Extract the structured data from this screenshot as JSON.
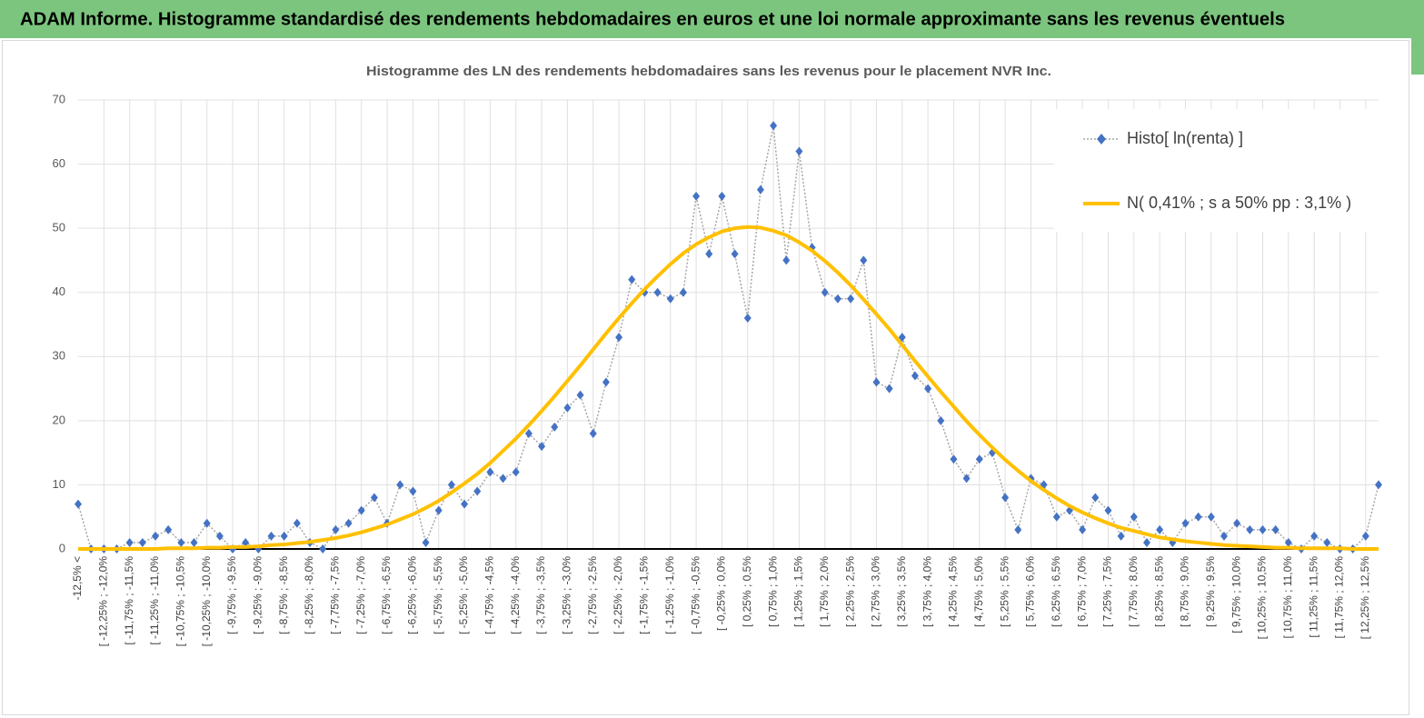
{
  "header": {
    "title": "ADAM Informe. Histogramme standardisé des rendements hebdomadaires en euros et une loi normale approximante sans les revenus éventuels"
  },
  "chart_data": {
    "type": "line",
    "title": "Histogramme des LN des rendements hebdomadaires sans les revenus pour le placement NVR Inc.",
    "categories": [
      "-12,5% <",
      null,
      "[ -12,25% ; -12,0%",
      null,
      "[ -11,75% ; -11,5%",
      null,
      "[ -11,25% ; -11,0%",
      null,
      "[ -10,75% ; -10,5%",
      null,
      "[ -10,25% ; -10,0%",
      null,
      "[ -9,75% ; -9,5%",
      null,
      "[ -9,25% ; -9,0%",
      null,
      "[ -8,75% ; -8,5%",
      null,
      "[ -8,25% ; -8,0%",
      null,
      "[ -7,75% ; -7,5%",
      null,
      "[ -7,25% ; -7,0%",
      null,
      "[ -6,75% ; -6,5%",
      null,
      "[ -6,25% ; -6,0%",
      null,
      "[ -5,75% ; -5,5%",
      null,
      "[ -5,25% ; -5,0%",
      null,
      "[ -4,75% ; -4,5%",
      null,
      "[ -4,25% ; -4,0%",
      null,
      "[ -3,75% ; -3,5%",
      null,
      "[ -3,25% ; -3,0%",
      null,
      "[ -2,75% ; -2,5%",
      null,
      "[ -2,25% ; -2,0%",
      null,
      "[ -1,75% ; -1,5%",
      null,
      "[ -1,25% ; -1,0%",
      null,
      "[ -0,75% ; -0,5%",
      null,
      "[ -0,25% ; 0,0%",
      null,
      "[ 0,25% ; 0,5%",
      null,
      "[ 0,75% ; 1,0%",
      null,
      "[ 1,25% ; 1,5%",
      null,
      "[ 1,75% ; 2,0%",
      null,
      "[ 2,25% ; 2,5%",
      null,
      "[ 2,75% ; 3,0%",
      null,
      "[ 3,25% ; 3,5%",
      null,
      "[ 3,75% ; 4,0%",
      null,
      "[ 4,25% ; 4,5%",
      null,
      "[ 4,75% ; 5,0%",
      null,
      "[ 5,25% ; 5,5%",
      null,
      "[ 5,75% ; 6,0%",
      null,
      "[ 6,25% ; 6,5%",
      null,
      "[ 6,75% ; 7,0%",
      null,
      "[ 7,25% ; 7,5%",
      null,
      "[ 7,75% ; 8,0%",
      null,
      "[ 8,25% ; 8,5%",
      null,
      "[ 8,75% ; 9,0%",
      null,
      "[ 9,25% ; 9,5%",
      null,
      "[ 9,75% ; 10,0%",
      null,
      "[ 10,25% ; 10,5%",
      null,
      "[ 10,75% ; 11,0%",
      null,
      "[ 11,25% ; 11,5%",
      null,
      "[ 11,75% ; 12,0%",
      null,
      "[ 12,25% ; 12,5%",
      null
    ],
    "series": [
      {
        "name": "Histo[ ln(renta) ]",
        "color": "#4472c4",
        "line_color": "#a6a6a6",
        "line_style": "dotted",
        "marker": "diamond",
        "values": [
          7,
          0,
          0,
          0,
          1,
          1,
          2,
          3,
          1,
          1,
          4,
          2,
          0,
          1,
          0,
          2,
          2,
          4,
          1,
          0,
          3,
          4,
          6,
          8,
          4,
          10,
          9,
          1,
          6,
          10,
          7,
          9,
          12,
          11,
          12,
          18,
          16,
          19,
          22,
          24,
          18,
          26,
          33,
          42,
          40,
          40,
          39,
          40,
          55,
          46,
          55,
          46,
          36,
          56,
          66,
          45,
          62,
          47,
          40,
          39,
          39,
          45,
          26,
          25,
          33,
          27,
          25,
          20,
          14,
          11,
          14,
          15,
          8,
          3,
          11,
          10,
          5,
          6,
          3,
          8,
          6,
          2,
          5,
          1,
          3,
          1,
          4,
          5,
          5,
          2,
          4,
          3,
          3,
          3,
          1,
          0,
          2,
          1,
          0,
          0,
          2,
          10
        ]
      },
      {
        "name": "N( 0,41% ; s a 50% pp : 3,1% )",
        "color": "#ffc000",
        "line_color": "#ffc000",
        "line_style": "solid",
        "values": [
          0,
          0,
          0,
          0,
          0,
          0,
          0,
          0.1,
          0.1,
          0.1,
          0.2,
          0.2,
          0.3,
          0.3,
          0.4,
          0.6,
          0.7,
          0.9,
          1.1,
          1.4,
          1.7,
          2.1,
          2.6,
          3.2,
          3.8,
          4.6,
          5.4,
          6.4,
          7.5,
          8.8,
          10.2,
          11.7,
          13.4,
          15.3,
          17.2,
          19.3,
          21.5,
          23.8,
          26.2,
          28.6,
          31.1,
          33.6,
          36.0,
          38.3,
          40.5,
          42.5,
          44.4,
          46.1,
          47.5,
          48.6,
          49.5,
          50.0,
          50.2,
          50.1,
          49.6,
          48.9,
          47.8,
          46.5,
          44.9,
          43.1,
          41.1,
          38.9,
          36.6,
          34.3,
          31.8,
          29.3,
          26.9,
          24.5,
          22.2,
          19.9,
          17.8,
          15.8,
          13.9,
          12.2,
          10.6,
          9.2,
          7.9,
          6.7,
          5.7,
          4.8,
          4.0,
          3.3,
          2.8,
          2.3,
          1.8,
          1.5,
          1.2,
          1.0,
          0.8,
          0.6,
          0.5,
          0.4,
          0.3,
          0.2,
          0.2,
          0.1,
          0.1,
          0.1,
          0.1,
          0,
          0,
          0
        ]
      }
    ],
    "ylim": [
      0,
      70
    ],
    "yticks": [
      0,
      10,
      20,
      30,
      40,
      50,
      60,
      70
    ],
    "grid": true,
    "legend": "top-right"
  }
}
